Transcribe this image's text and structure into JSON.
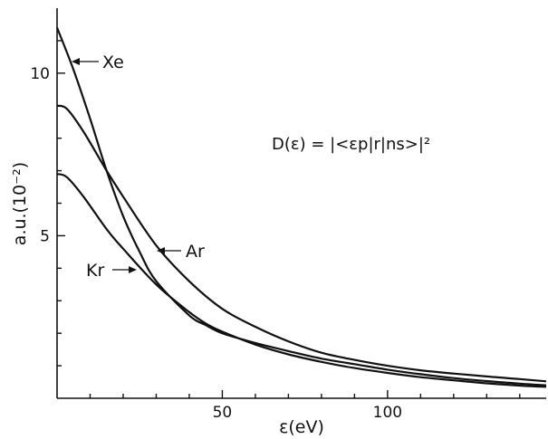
{
  "chart_data": {
    "type": "line",
    "xlabel": "ε(eV)",
    "ylabel": "a.u.(10⁻²)",
    "annotation": "D(ε) = |<εp|r|ns>|²",
    "xlim": [
      0,
      148
    ],
    "ylim": [
      0,
      12
    ],
    "x_ticks": [
      50,
      100
    ],
    "y_ticks": [
      5,
      10
    ],
    "grid": false,
    "series": [
      {
        "name": "Xe",
        "x": [
          0,
          5,
          10,
          15,
          20,
          25,
          30,
          40,
          45,
          50,
          60,
          70,
          80,
          90,
          100,
          110,
          120,
          130,
          140,
          148
        ],
        "y": [
          11.4,
          10.1,
          8.6,
          7.0,
          5.6,
          4.5,
          3.6,
          2.55,
          2.25,
          2.0,
          1.7,
          1.45,
          1.22,
          1.05,
          0.88,
          0.74,
          0.62,
          0.53,
          0.45,
          0.4
        ]
      },
      {
        "name": "Ar",
        "x": [
          0,
          3,
          8,
          15,
          20,
          30,
          40,
          50,
          60,
          70,
          80,
          90,
          100,
          110,
          120,
          130,
          140,
          148
        ],
        "y": [
          9.0,
          8.9,
          8.2,
          7.0,
          6.2,
          4.7,
          3.6,
          2.75,
          2.2,
          1.75,
          1.4,
          1.18,
          1.0,
          0.86,
          0.76,
          0.67,
          0.59,
          0.52
        ]
      },
      {
        "name": "Kr",
        "x": [
          0,
          3,
          8,
          15,
          20,
          30,
          40,
          45,
          50,
          60,
          70,
          80,
          90,
          100,
          110,
          120,
          130,
          140,
          148
        ],
        "y": [
          6.9,
          6.8,
          6.2,
          5.2,
          4.6,
          3.5,
          2.65,
          2.3,
          2.05,
          1.65,
          1.35,
          1.12,
          0.93,
          0.78,
          0.65,
          0.55,
          0.46,
          0.39,
          0.35
        ]
      }
    ]
  }
}
